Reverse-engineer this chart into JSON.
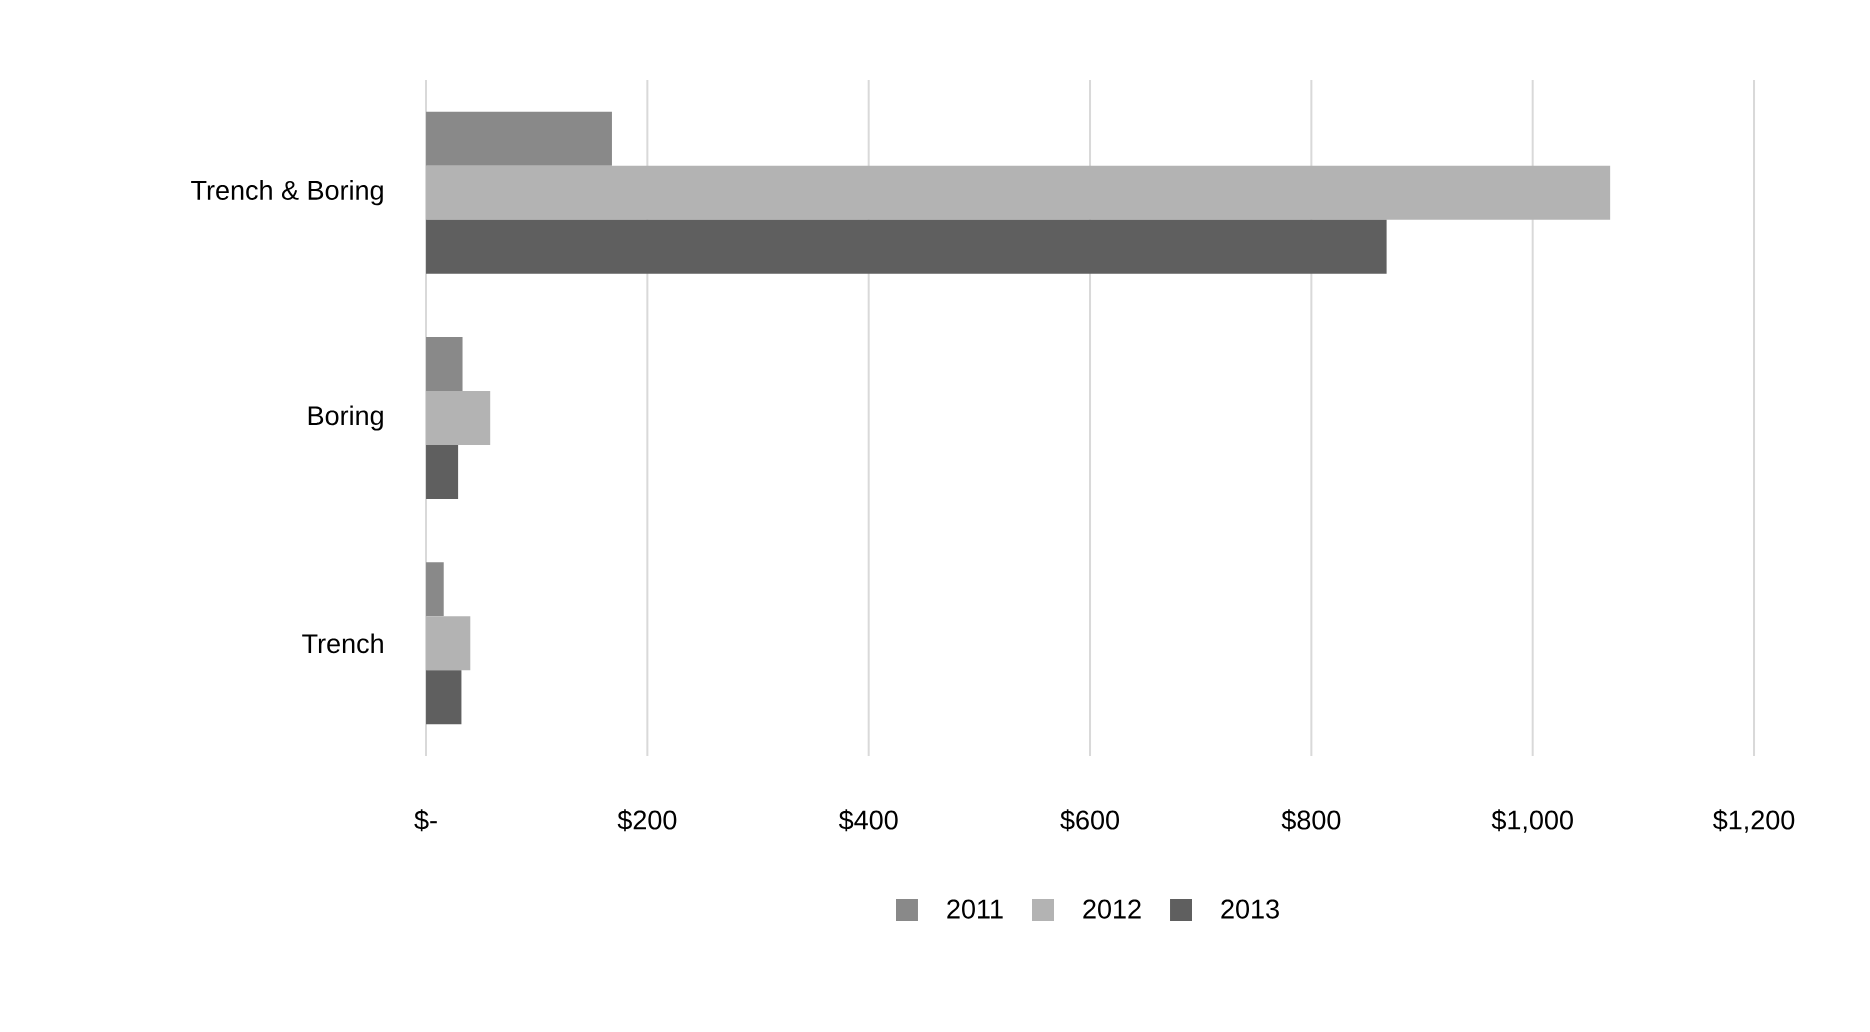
{
  "chart_data": {
    "type": "bar",
    "orientation": "horizontal",
    "categories": [
      "Trench & Boring",
      "Boring",
      "Trench"
    ],
    "series": [
      {
        "name": "2011",
        "color": "#898989",
        "values": [
          168,
          33,
          16
        ]
      },
      {
        "name": "2012",
        "color": "#b3b3b3",
        "values": [
          1070,
          58,
          40
        ]
      },
      {
        "name": "2013",
        "color": "#5f5f5f",
        "values": [
          868,
          29,
          32
        ]
      }
    ],
    "xlim": [
      0,
      1200
    ],
    "xticks": [
      {
        "value": 0,
        "label": "$-"
      },
      {
        "value": 200,
        "label": "$200"
      },
      {
        "value": 400,
        "label": "$400"
      },
      {
        "value": 600,
        "label": "$600"
      },
      {
        "value": 800,
        "label": "$800"
      },
      {
        "value": 1000,
        "label": "$1,000"
      },
      {
        "value": 1200,
        "label": "$1,200"
      }
    ],
    "grid": "x",
    "legend": "bottom"
  }
}
